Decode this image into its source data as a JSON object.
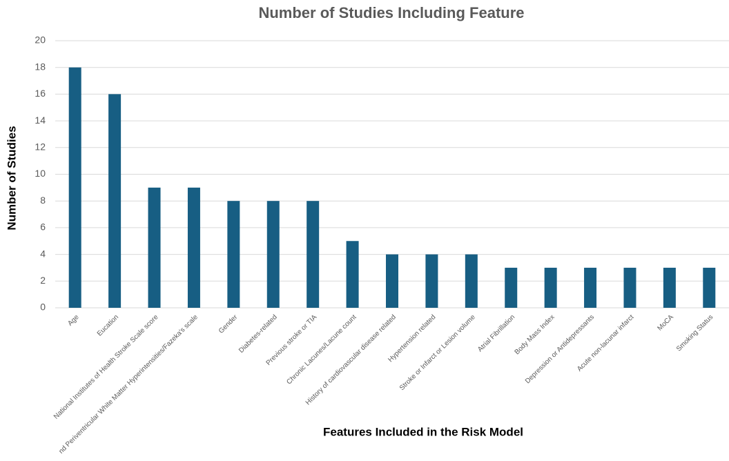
{
  "chart_data": {
    "type": "bar",
    "title": "Number of Studies Including Feature",
    "x_label": "Features Included in the Risk Model",
    "y_label": "Number of Studies",
    "categories": [
      "Age",
      "Eucation",
      "National Institutes of Health Stroke Scale score",
      "nd Periventricular White Matter Hyperintensities/Fazeka's scale",
      "Gender",
      "Diabetes-related",
      "Previous stroke or TIA",
      "Chronic Lacunes/Lacune count",
      "History of cardiovascular disease related",
      "Hypertension related",
      "Stroke or Infarct or Lesion volume",
      "Atrial Fibrillation",
      "Body Mass Index",
      "Depression or Antidepressants",
      "Acute non-lacunar infarct",
      "MoCA",
      "Smoking Status"
    ],
    "values": [
      18,
      16,
      9,
      9,
      8,
      8,
      8,
      5,
      4,
      4,
      4,
      3,
      3,
      3,
      3,
      3,
      3
    ],
    "color": "#175e83",
    "ylim": [
      0,
      20
    ],
    "yticks": [
      0,
      2,
      4,
      6,
      8,
      10,
      12,
      14,
      16,
      18,
      20
    ],
    "grid": true
  }
}
